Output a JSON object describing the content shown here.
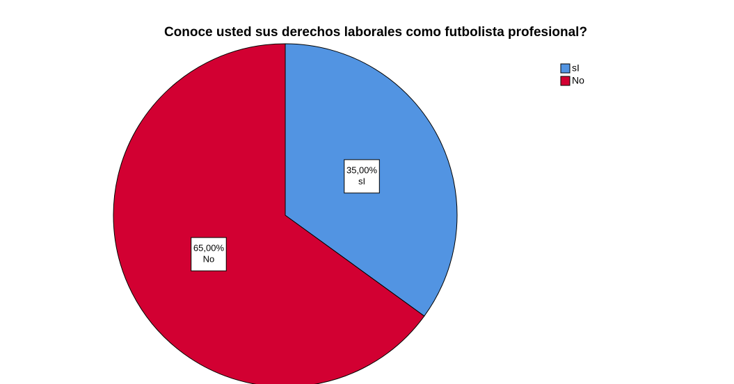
{
  "chart_data": {
    "type": "pie",
    "title": "Conoce usted sus derechos laborales como futbolista profesional?",
    "categories": [
      "sI",
      "No"
    ],
    "values": [
      35,
      65
    ],
    "value_labels": [
      "35,00%",
      "65,00%"
    ],
    "colors": [
      "#5294e2",
      "#d20032"
    ],
    "legend": "top-right"
  }
}
